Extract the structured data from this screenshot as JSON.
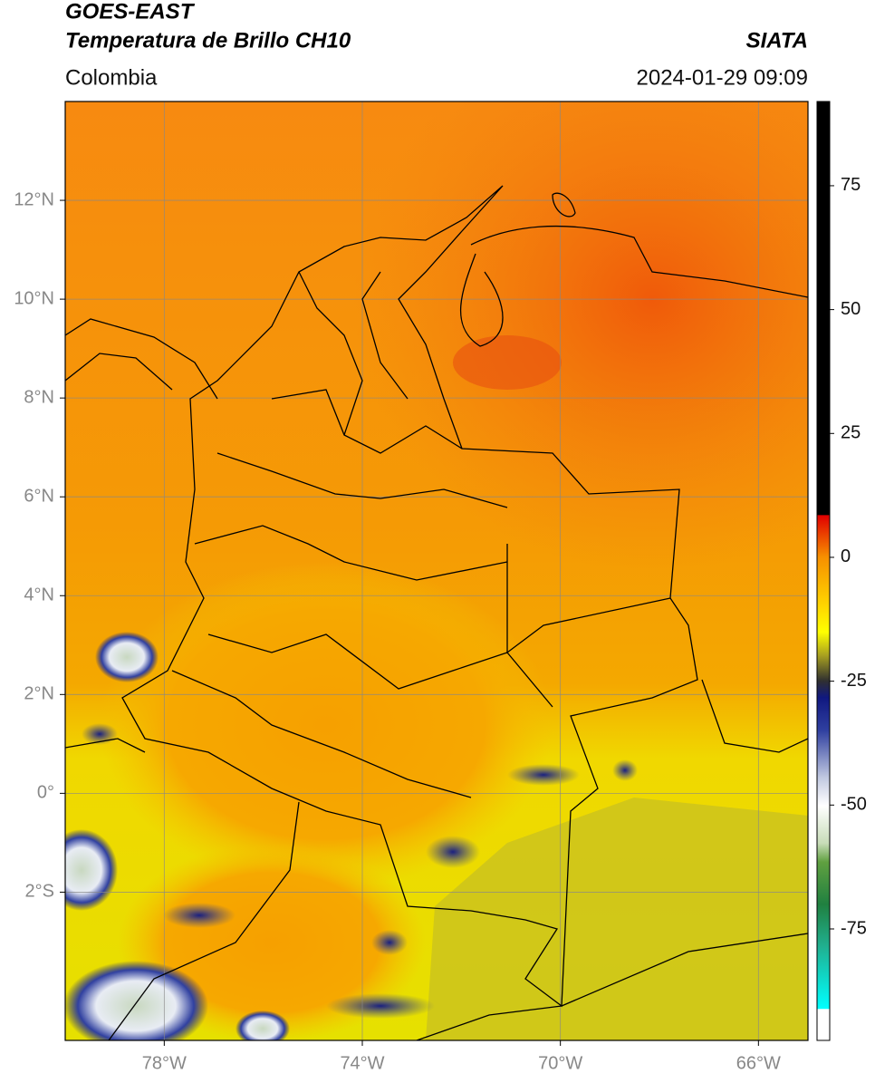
{
  "map": {
    "title": "GOES-EAST",
    "subtitle": "Temperatura de Brillo CH10",
    "source": "SIATA",
    "region": "Colombia",
    "datetime": "2024-01-29 09:09",
    "xlim": [
      -80,
      -65
    ],
    "ylim": [
      -5,
      14
    ],
    "xticks": [
      {
        "value": -78,
        "label": "78°W"
      },
      {
        "value": -74,
        "label": "74°W"
      },
      {
        "value": -70,
        "label": "70°W"
      },
      {
        "value": -66,
        "label": "66°W"
      }
    ],
    "yticks": [
      {
        "value": 12,
        "label": "12°N"
      },
      {
        "value": 10,
        "label": "10°N"
      },
      {
        "value": 8,
        "label": "8°N"
      },
      {
        "value": 6,
        "label": "6°N"
      },
      {
        "value": 4,
        "label": "4°N"
      },
      {
        "value": 2,
        "label": "2°N"
      },
      {
        "value": 0,
        "label": "0°"
      },
      {
        "value": -2,
        "label": "2°S"
      }
    ],
    "grid": true,
    "colorbar": {
      "lim": [
        -97.5,
        92
      ],
      "ticks": [
        75,
        50,
        25,
        0,
        -25,
        -50,
        -75
      ]
    }
  }
}
